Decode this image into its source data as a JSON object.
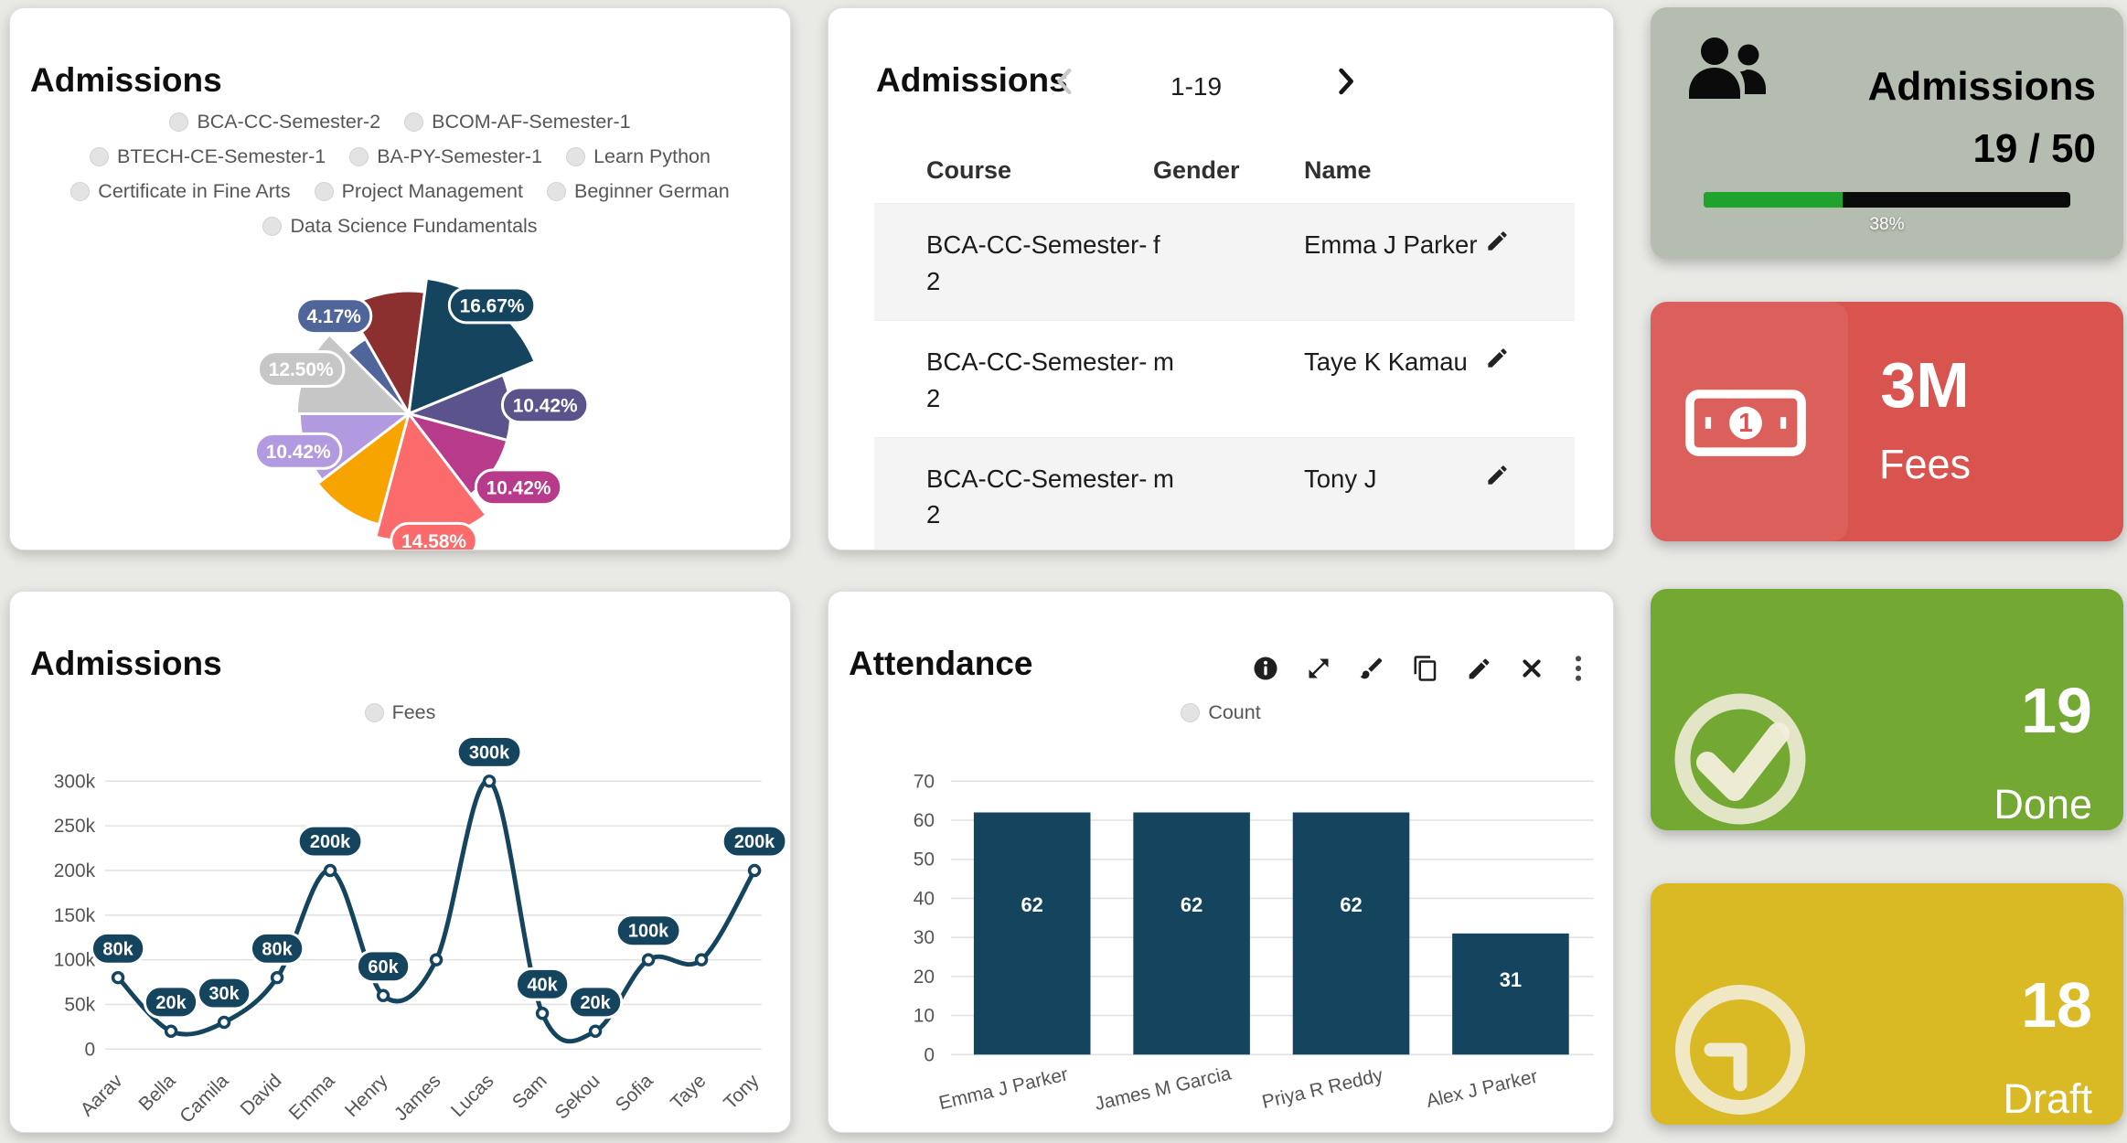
{
  "pie_card": {
    "title": "Admissions"
  },
  "line_card": {
    "title": "Admissions"
  },
  "bar_card": {
    "title": "Attendance",
    "toolbar": [
      "info-icon",
      "expand-icon",
      "brush-icon",
      "duplicate-icon",
      "edit-icon",
      "close-icon",
      "menu-icon"
    ]
  },
  "table_card": {
    "title": "Admissions",
    "pagination": {
      "range": "1-19"
    },
    "columns": [
      "Course",
      "Gender",
      "Name"
    ],
    "rows": [
      {
        "course": "BCA-CC-Semester-2",
        "gender": "f",
        "name": "Emma J Parker"
      },
      {
        "course": "BCA-CC-Semester-2",
        "gender": "m",
        "name": "Taye K Kamau"
      },
      {
        "course": "BCA-CC-Semester-2",
        "gender": "m",
        "name": "Tony J"
      }
    ]
  },
  "stats": {
    "admissions": {
      "title": "Admissions",
      "value": "19 / 50",
      "progress_pct": 38,
      "progress_label": "38%",
      "bg": "#b5bdb1",
      "bar_bg": "#0b0b0b",
      "bar_fill": "#1fa32c"
    },
    "fees": {
      "value": "3M",
      "label": "Fees",
      "bg": "#d9534f"
    },
    "done": {
      "value": "19",
      "label": "Done",
      "bg": "#73a832"
    },
    "draft": {
      "value": "18",
      "label": "Draft",
      "bg": "#d9ba25"
    }
  },
  "chart_data": [
    {
      "type": "pie",
      "title": "Admissions",
      "legend_position": "top",
      "legend_items": [
        "BCA-CC-Semester-2",
        "BCOM-AF-Semester-1",
        "BTECH-CE-Semester-1",
        "BA-PY-Semester-1",
        "Learn Python",
        "Certificate in Fine Arts",
        "Project Management",
        "Beginner German",
        "Data Science Fundamentals"
      ],
      "start_angle": -30,
      "slices": [
        {
          "value": 10.42,
          "pct": "10.42%",
          "color": "#8b2f2f",
          "r": 135,
          "label_visible": false
        },
        {
          "value": 16.67,
          "pct": "16.67%",
          "color": "#15455e",
          "r": 150,
          "label_r": 150
        },
        {
          "value": 10.42,
          "pct": "10.42%",
          "color": "#5b538b",
          "r": 112,
          "label_r": 150
        },
        {
          "value": 10.42,
          "pct": "10.42%",
          "color": "#b83a8a",
          "r": 112,
          "label_r": 145
        },
        {
          "value": 14.58,
          "pct": "14.58%",
          "color": "#fb6b6b",
          "r": 140,
          "label_r": 142
        },
        {
          "value": 10.42,
          "pct": "10.42%",
          "color": "#f7a300",
          "r": 126,
          "label_visible": false
        },
        {
          "value": 10.42,
          "pct": "10.42%",
          "color": "#b29ae0",
          "r": 120,
          "label_r": 128
        },
        {
          "value": 12.5,
          "pct": "12.50%",
          "color": "#c6c6c6",
          "r": 123,
          "label_r": 128
        },
        {
          "value": 4.17,
          "pct": "4.17%",
          "color": "#50659a",
          "r": 95,
          "label_r": 135
        }
      ]
    },
    {
      "type": "line",
      "title": "Admissions",
      "series_name": "Fees",
      "categories": [
        "Aarav",
        "Bella",
        "Camila",
        "David",
        "Emma",
        "Henry",
        "James",
        "Lucas",
        "Sam",
        "Sekou",
        "Sofia",
        "Taye",
        "Tony"
      ],
      "values": [
        80000,
        20000,
        30000,
        80000,
        200000,
        60000,
        100000,
        300000,
        40000,
        20000,
        100000,
        100000,
        200000
      ],
      "point_labels": [
        "80k",
        "20k",
        "30k",
        "80k",
        "200k",
        "60k",
        "",
        "300k",
        "40k",
        "20k",
        "100k",
        "",
        "200k"
      ],
      "yticks": [
        "0",
        "50k",
        "100k",
        "150k",
        "200k",
        "250k",
        "300k"
      ],
      "ylim": [
        0,
        300000
      ],
      "grid": true,
      "color": "#15455e"
    },
    {
      "type": "bar",
      "title": "Attendance",
      "series_name": "Count",
      "categories": [
        "Emma J Parker",
        "James M Garcia",
        "Priya R Reddy",
        "Alex J Parker"
      ],
      "values": [
        62,
        62,
        62,
        31
      ],
      "yticks": [
        0,
        10,
        20,
        30,
        40,
        50,
        60,
        70
      ],
      "ylim": [
        0,
        70
      ],
      "grid": true,
      "color": "#15455e"
    }
  ]
}
